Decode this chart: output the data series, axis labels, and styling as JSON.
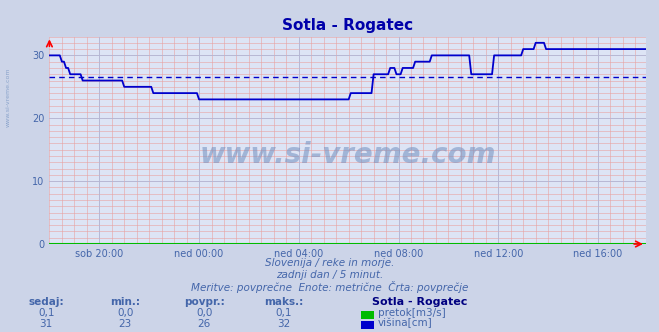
{
  "title": "Sotla - Rogatec",
  "bg_color": "#ccd4e8",
  "plot_bg_color": "#dde4f5",
  "grid_color_red": "#e8a0a0",
  "grid_color_blue": "#b0b8d8",
  "line_color": "#0000cc",
  "avg_line_color": "#0000cc",
  "avg_line_value": 26.5,
  "text_color": "#4466aa",
  "title_color": "#0000aa",
  "ylim": [
    0,
    33
  ],
  "yticks": [
    0,
    10,
    20,
    30
  ],
  "xtick_labels": [
    "sob 20:00",
    "ned 00:00",
    "ned 04:00",
    "ned 08:00",
    "ned 12:00",
    "ned 16:00"
  ],
  "subtitle_lines": [
    "Slovenija / reke in morje.",
    "zadnji dan / 5 minut.",
    "Meritve: povprečne  Enote: metrične  Črta: povprečje"
  ],
  "table_headers": [
    "sedaj:",
    "min.:",
    "povpr.:",
    "maks.:"
  ],
  "table_row1": [
    "0,1",
    "0,0",
    "0,0",
    "0,1"
  ],
  "table_row2": [
    "31",
    "23",
    "26",
    "32"
  ],
  "legend_label1": "pretok[m3/s]",
  "legend_label2": "višina[cm]",
  "legend_color1": "#00bb00",
  "legend_color2": "#0000cc",
  "station_label": "Sotla - Rogatec",
  "watermark": "www.si-vreme.com",
  "watermark_color": "#7090c0",
  "left_label": "www.si-vreme.com",
  "tick_hours_from_start": [
    2,
    6,
    10,
    14,
    18,
    22
  ],
  "n_points": 288,
  "height_profile": [
    30,
    30,
    30,
    30,
    30,
    30,
    29,
    29,
    28,
    28,
    27,
    27,
    27,
    27,
    27,
    27,
    26,
    26,
    26,
    26,
    26,
    26,
    26,
    26,
    26,
    26,
    26,
    26,
    26,
    26,
    26,
    26,
    26,
    26,
    26,
    26,
    25,
    25,
    25,
    25,
    25,
    25,
    25,
    25,
    25,
    25,
    25,
    25,
    25,
    25,
    24,
    24,
    24,
    24,
    24,
    24,
    24,
    24,
    24,
    24,
    24,
    24,
    24,
    24,
    24,
    24,
    24,
    24,
    24,
    24,
    24,
    24,
    23,
    23,
    23,
    23,
    23,
    23,
    23,
    23,
    23,
    23,
    23,
    23,
    23,
    23,
    23,
    23,
    23,
    23,
    23,
    23,
    23,
    23,
    23,
    23,
    23,
    23,
    23,
    23,
    23,
    23,
    23,
    23,
    23,
    23,
    23,
    23,
    23,
    23,
    23,
    23,
    23,
    23,
    23,
    23,
    23,
    23,
    23,
    23,
    23,
    23,
    23,
    23,
    23,
    23,
    23,
    23,
    23,
    23,
    23,
    23,
    23,
    23,
    23,
    23,
    23,
    23,
    23,
    23,
    23,
    23,
    23,
    23,
    23,
    24,
    24,
    24,
    24,
    24,
    24,
    24,
    24,
    24,
    24,
    24,
    27,
    27,
    27,
    27,
    27,
    27,
    27,
    27,
    28,
    28,
    28,
    27,
    27,
    27,
    28,
    28,
    28,
    28,
    28,
    28,
    29,
    29,
    29,
    29,
    29,
    29,
    29,
    29,
    30,
    30,
    30,
    30,
    30,
    30,
    30,
    30,
    30,
    30,
    30,
    30,
    30,
    30,
    30,
    30,
    30,
    30,
    30,
    27,
    27,
    27,
    27,
    27,
    27,
    27,
    27,
    27,
    27,
    27,
    30,
    30,
    30,
    30,
    30,
    30,
    30,
    30,
    30,
    30,
    30,
    30,
    30,
    30,
    31,
    31,
    31,
    31,
    31,
    31,
    32,
    32,
    32,
    32,
    32,
    31,
    31,
    31,
    31,
    31,
    31,
    31,
    31,
    31,
    31,
    31,
    31,
    31,
    31,
    31,
    31,
    31,
    31,
    31,
    31,
    31,
    31,
    31,
    31,
    31,
    31,
    31,
    31,
    31,
    31,
    31,
    31,
    31,
    31,
    31,
    31,
    31,
    31,
    31,
    31,
    31,
    31,
    31,
    31,
    31,
    31,
    31,
    31,
    31
  ]
}
